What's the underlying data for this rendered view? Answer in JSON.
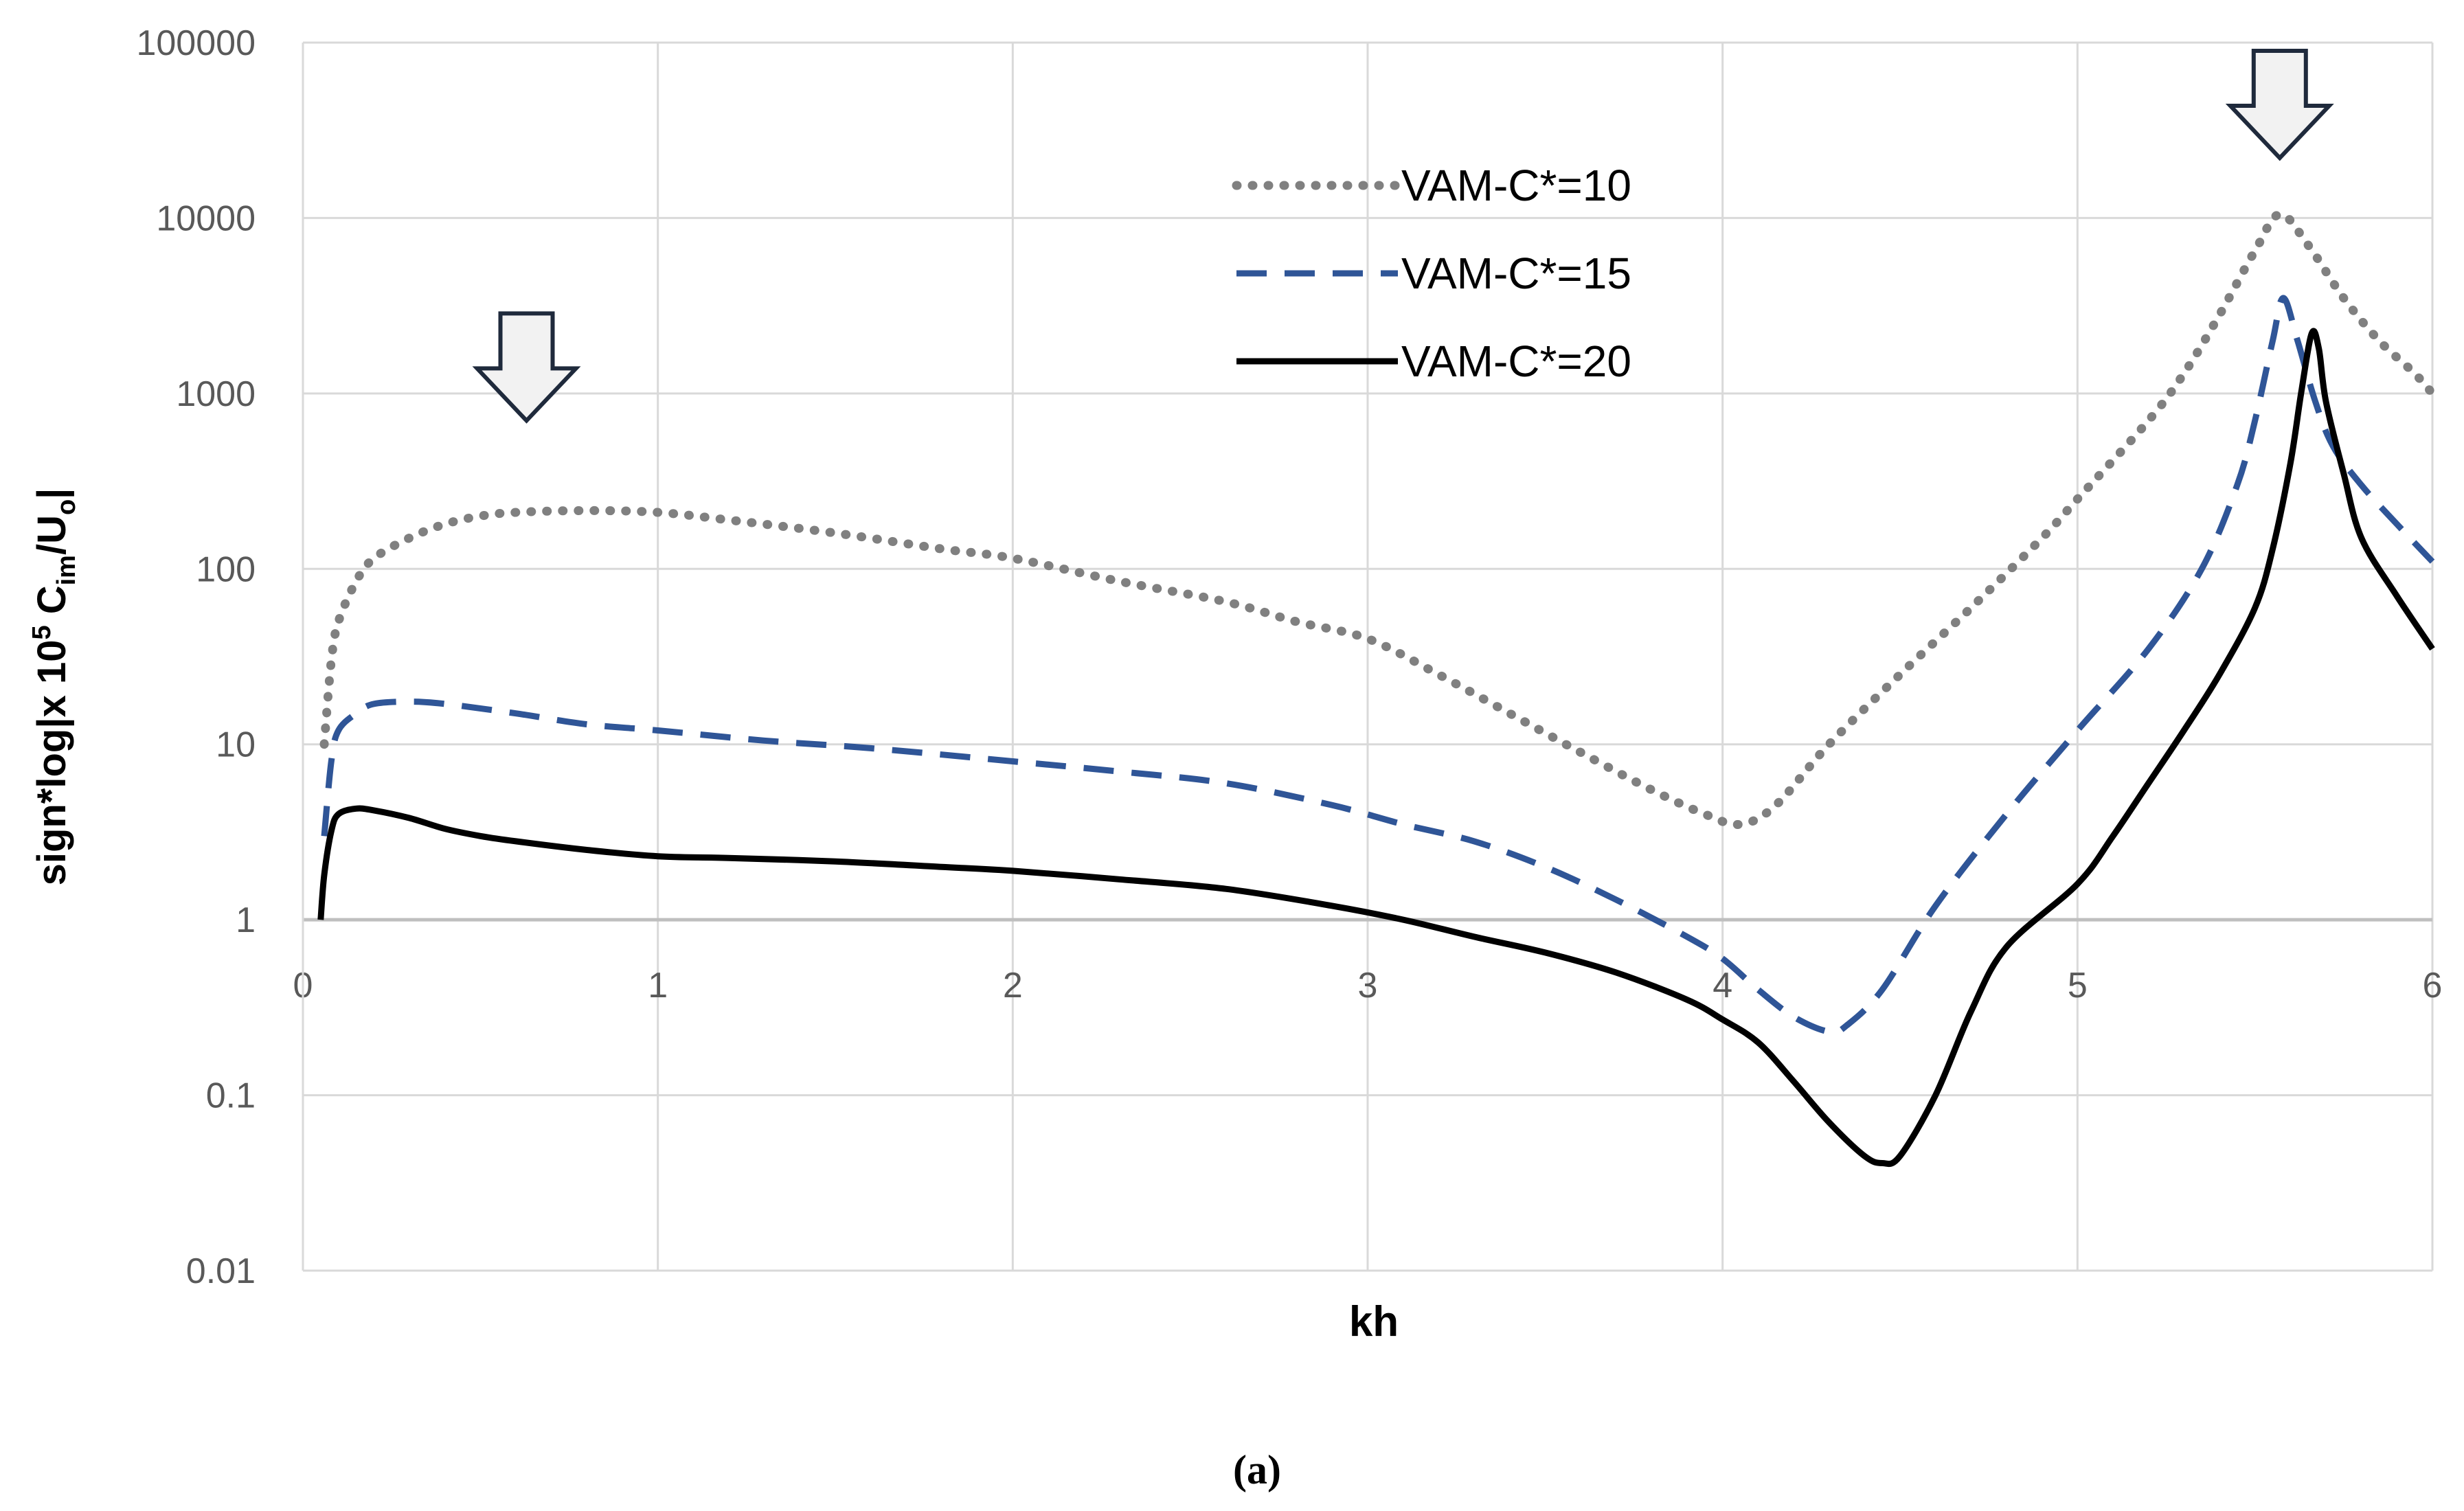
{
  "chart_data": {
    "type": "line",
    "title": "",
    "xlabel": "kh",
    "ylabel": {
      "prefix": "sign*log|x 10",
      "sup": "5",
      "mid": " C",
      "sub1": "im",
      "mid2": "/U",
      "sub2": "o",
      "suffix": "|"
    },
    "xlim": [
      0,
      6
    ],
    "ylim": [
      0.01,
      100000
    ],
    "yscale": "log",
    "x_ticks": [
      "0",
      "1",
      "2",
      "3",
      "4",
      "5",
      "6"
    ],
    "y_ticks": [
      "0.01",
      "0.1",
      "1",
      "10",
      "100",
      "1000",
      "10000",
      "100000"
    ],
    "grid": true,
    "legend_position": "top-right",
    "caption": "(a)",
    "series": [
      {
        "name": "VAM-C*=10",
        "color": "#808080",
        "style": "dotted",
        "points": [
          [
            0.06,
            10
          ],
          [
            0.08,
            30
          ],
          [
            0.1,
            50
          ],
          [
            0.15,
            85
          ],
          [
            0.2,
            115
          ],
          [
            0.3,
            150
          ],
          [
            0.4,
            180
          ],
          [
            0.5,
            200
          ],
          [
            0.6,
            210
          ],
          [
            0.8,
            215
          ],
          [
            1.0,
            210
          ],
          [
            1.2,
            190
          ],
          [
            1.5,
            160
          ],
          [
            1.8,
            130
          ],
          [
            2.0,
            115
          ],
          [
            2.3,
            85
          ],
          [
            2.6,
            65
          ],
          [
            2.8,
            50
          ],
          [
            3.0,
            40
          ],
          [
            3.2,
            25
          ],
          [
            3.4,
            15
          ],
          [
            3.6,
            9
          ],
          [
            3.8,
            5.5
          ],
          [
            3.95,
            4
          ],
          [
            4.05,
            3.5
          ],
          [
            4.15,
            4.5
          ],
          [
            4.3,
            10
          ],
          [
            4.5,
            25
          ],
          [
            4.7,
            60
          ],
          [
            4.9,
            150
          ],
          [
            5.0,
            250
          ],
          [
            5.2,
            700
          ],
          [
            5.3,
            1300
          ],
          [
            5.4,
            2800
          ],
          [
            5.5,
            6500
          ],
          [
            5.57,
            10500
          ],
          [
            5.65,
            7000
          ],
          [
            5.75,
            3500
          ],
          [
            5.85,
            2000
          ],
          [
            5.95,
            1300
          ],
          [
            6.0,
            1000
          ]
        ]
      },
      {
        "name": "VAM-C*=15",
        "color": "#2F5597",
        "style": "dashed",
        "points": [
          [
            0.06,
            3
          ],
          [
            0.08,
            8
          ],
          [
            0.1,
            12
          ],
          [
            0.15,
            15
          ],
          [
            0.2,
            17
          ],
          [
            0.3,
            17.5
          ],
          [
            0.4,
            17
          ],
          [
            0.6,
            15
          ],
          [
            0.8,
            13
          ],
          [
            1.0,
            12
          ],
          [
            1.3,
            10.5
          ],
          [
            1.6,
            9.5
          ],
          [
            2.0,
            8
          ],
          [
            2.3,
            7
          ],
          [
            2.6,
            6
          ],
          [
            2.9,
            4.5
          ],
          [
            3.1,
            3.5
          ],
          [
            3.3,
            2.8
          ],
          [
            3.5,
            2
          ],
          [
            3.7,
            1.3
          ],
          [
            3.9,
            0.8
          ],
          [
            4.0,
            0.6
          ],
          [
            4.1,
            0.4
          ],
          [
            4.2,
            0.28
          ],
          [
            4.3,
            0.23
          ],
          [
            4.35,
            0.25
          ],
          [
            4.45,
            0.4
          ],
          [
            4.6,
            1.2
          ],
          [
            4.8,
            4
          ],
          [
            5.0,
            12
          ],
          [
            5.2,
            35
          ],
          [
            5.35,
            100
          ],
          [
            5.45,
            300
          ],
          [
            5.5,
            700
          ],
          [
            5.55,
            2000
          ],
          [
            5.58,
            3500
          ],
          [
            5.62,
            2000
          ],
          [
            5.67,
            900
          ],
          [
            5.72,
            500
          ],
          [
            5.8,
            300
          ],
          [
            5.9,
            180
          ],
          [
            6.0,
            110
          ]
        ]
      },
      {
        "name": "VAM-C*=20",
        "color": "#000000",
        "style": "solid",
        "points": [
          [
            0.05,
            1
          ],
          [
            0.06,
            1.8
          ],
          [
            0.08,
            3.2
          ],
          [
            0.1,
            4
          ],
          [
            0.15,
            4.3
          ],
          [
            0.2,
            4.2
          ],
          [
            0.3,
            3.8
          ],
          [
            0.4,
            3.3
          ],
          [
            0.5,
            3
          ],
          [
            0.6,
            2.8
          ],
          [
            0.8,
            2.5
          ],
          [
            1.0,
            2.3
          ],
          [
            1.2,
            2.25
          ],
          [
            1.5,
            2.15
          ],
          [
            1.8,
            2
          ],
          [
            2.0,
            1.9
          ],
          [
            2.3,
            1.7
          ],
          [
            2.6,
            1.5
          ],
          [
            2.9,
            1.2
          ],
          [
            3.1,
            1.0
          ],
          [
            3.3,
            0.8
          ],
          [
            3.5,
            0.65
          ],
          [
            3.7,
            0.5
          ],
          [
            3.9,
            0.35
          ],
          [
            4.0,
            0.27
          ],
          [
            4.1,
            0.2
          ],
          [
            4.2,
            0.12
          ],
          [
            4.3,
            0.07
          ],
          [
            4.4,
            0.045
          ],
          [
            4.45,
            0.041
          ],
          [
            4.5,
            0.045
          ],
          [
            4.6,
            0.1
          ],
          [
            4.7,
            0.3
          ],
          [
            4.8,
            0.7
          ],
          [
            5.0,
            1.6
          ],
          [
            5.1,
            3
          ],
          [
            5.2,
            6
          ],
          [
            5.3,
            12
          ],
          [
            5.4,
            25
          ],
          [
            5.5,
            60
          ],
          [
            5.55,
            130
          ],
          [
            5.6,
            400
          ],
          [
            5.63,
            1000
          ],
          [
            5.66,
            2200
          ],
          [
            5.68,
            1800
          ],
          [
            5.7,
            900
          ],
          [
            5.75,
            350
          ],
          [
            5.8,
            150
          ],
          [
            5.9,
            70
          ],
          [
            6.0,
            35
          ]
        ]
      }
    ],
    "annotations": [
      {
        "type": "down-arrow",
        "name": "left-peak-arrow",
        "at": [
          0.63,
          700
        ]
      },
      {
        "type": "down-arrow",
        "name": "right-peak-arrow",
        "at": [
          5.57,
          22000
        ]
      }
    ]
  }
}
